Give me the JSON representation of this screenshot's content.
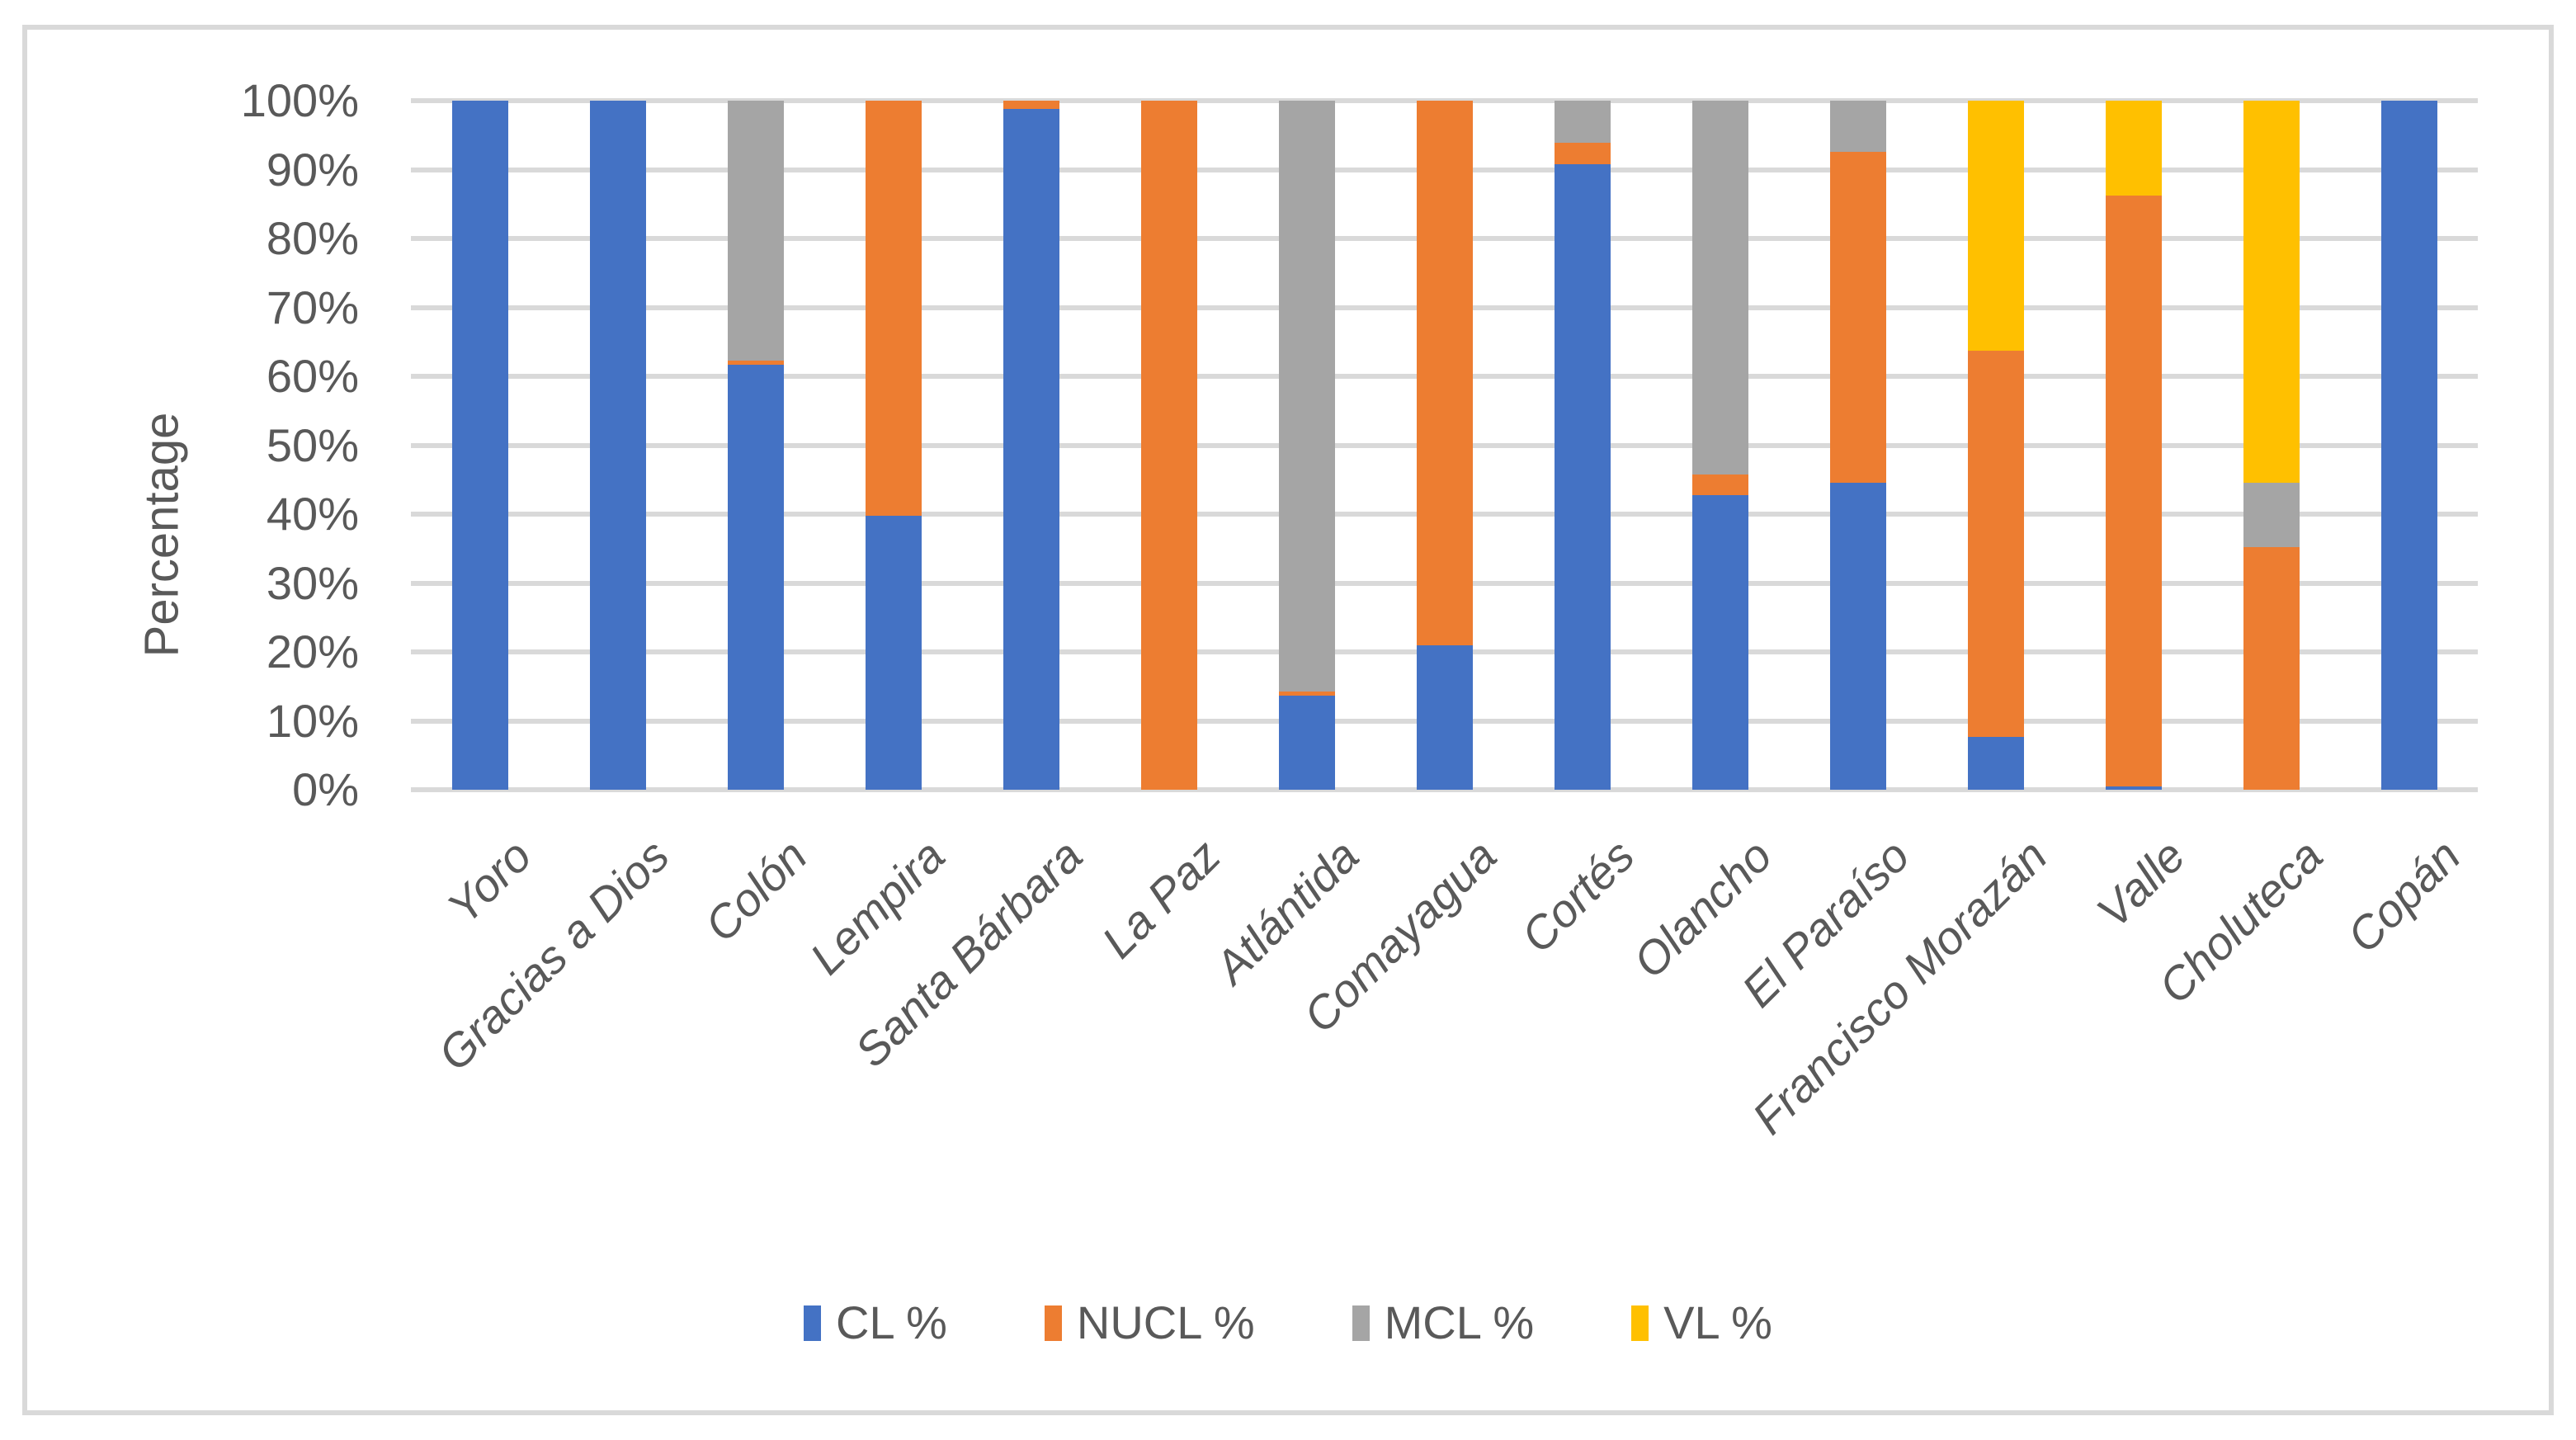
{
  "chart_data": {
    "type": "bar",
    "stacked": true,
    "percent_stacked": true,
    "title": "",
    "xlabel": "",
    "ylabel": "Percentage",
    "ylim": [
      0,
      100
    ],
    "ytick_step": 10,
    "ytick_labels": [
      "0%",
      "10%",
      "20%",
      "30%",
      "40%",
      "50%",
      "60%",
      "70%",
      "80%",
      "90%",
      "100%"
    ],
    "grid": true,
    "legend_position": "bottom",
    "categories": [
      "Yoro",
      "Gracias a Dios",
      "Colón",
      "Lempira",
      "Santa Bárbara",
      "La Paz",
      "Atlántida",
      "Comayagua",
      "Cortés",
      "Olancho",
      "El Paraíso",
      "Francisco Morazán",
      "Valle",
      "Choluteca",
      "Copán"
    ],
    "series": [
      {
        "name": "CL %",
        "color": "#4472C4",
        "values": [
          100,
          100,
          61.7,
          39.8,
          98.8,
          0,
          13.7,
          21.0,
          90.8,
          42.8,
          44.5,
          7.7,
          0.5,
          0,
          100
        ]
      },
      {
        "name": "NUCL %",
        "color": "#ED7D31",
        "values": [
          0,
          0,
          0.6,
          60.2,
          1.2,
          100,
          0.6,
          79.0,
          3.1,
          2.9,
          48.1,
          56.0,
          85.7,
          35.2,
          0
        ]
      },
      {
        "name": "MCL %",
        "color": "#A5A5A5",
        "values": [
          0,
          0,
          37.7,
          0,
          0,
          0,
          85.7,
          0,
          6.1,
          54.3,
          7.4,
          0,
          0,
          9.4,
          0
        ]
      },
      {
        "name": "VL %",
        "color": "#FFC000",
        "values": [
          0,
          0,
          0,
          0,
          0,
          0,
          0,
          0,
          0,
          0,
          0,
          36.3,
          13.8,
          55.4,
          0
        ]
      }
    ]
  },
  "colors": {
    "gridline": "#D9D9D9",
    "chart_border": "#D9D9D9",
    "text": "#595959",
    "background": "#FFFFFF"
  }
}
